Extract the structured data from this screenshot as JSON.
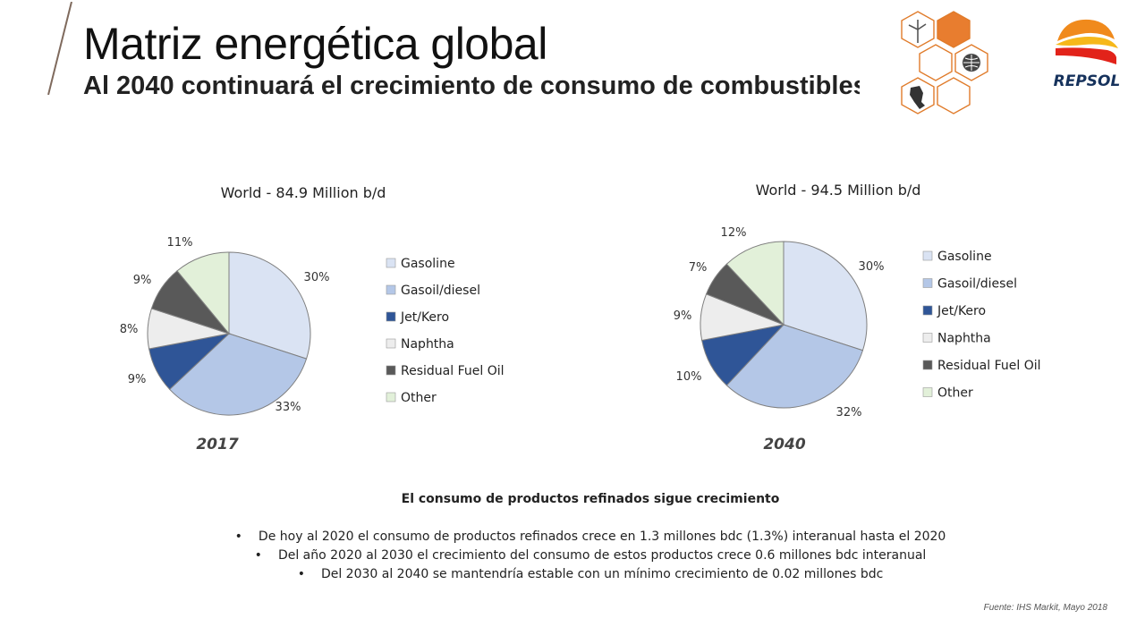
{
  "header": {
    "title": "Matriz energética global",
    "subtitle": "Al 2040 continuará el crecimiento de consumo de combustibles"
  },
  "logo": {
    "brand": "REPSOL",
    "colors": {
      "red": "#e2231a",
      "orange": "#f08a1c",
      "yellow": "#f6b81a",
      "navy": "#16325c"
    }
  },
  "hex_icons": [
    "wind-turbine-icon",
    "globe-icon",
    "peru-map-icon"
  ],
  "chart_data": [
    {
      "type": "pie",
      "title": "World - 84.9 Million b/d",
      "caption": "2017",
      "categories": [
        "Gasoline",
        "Gasoil/diesel",
        "Jet/Kero",
        "Naphtha",
        "Residual Fuel Oil",
        "Other"
      ],
      "values": [
        30,
        33,
        9,
        8,
        9,
        11
      ],
      "labels": [
        "30%",
        "33%",
        "9%",
        "8%",
        "9%",
        "11%"
      ],
      "colors": [
        "#dae3f3",
        "#b4c7e7",
        "#2f5597",
        "#ededed",
        "#595959",
        "#e2f0d9"
      ],
      "legend_position": "right"
    },
    {
      "type": "pie",
      "title": "World - 94.5 Million b/d",
      "caption": "2040",
      "categories": [
        "Gasoline",
        "Gasoil/diesel",
        "Jet/Kero",
        "Naphtha",
        "Residual Fuel Oil",
        "Other"
      ],
      "values": [
        30,
        32,
        10,
        9,
        7,
        12
      ],
      "labels": [
        "30%",
        "32%",
        "10%",
        "9%",
        "7%",
        "12%"
      ],
      "colors": [
        "#dae3f3",
        "#b4c7e7",
        "#2f5597",
        "#ededed",
        "#595959",
        "#e2f0d9"
      ],
      "legend_position": "right"
    }
  ],
  "summary": {
    "heading": "El consumo de productos refinados sigue crecimiento",
    "bullets": [
      "De hoy al 2020 el consumo de productos refinados crece en 1.3 millones bdc (1.3%)  interanual hasta el 2020",
      "Del año 2020 al 2030 el crecimiento del consumo de estos productos crece 0.6 millones bdc interanual",
      "Del 2030 al 2040 se mantendría estable con un mínimo crecimiento de 0.02 millones bdc"
    ]
  },
  "source": "Fuente: IHS Markit, Mayo 2018"
}
